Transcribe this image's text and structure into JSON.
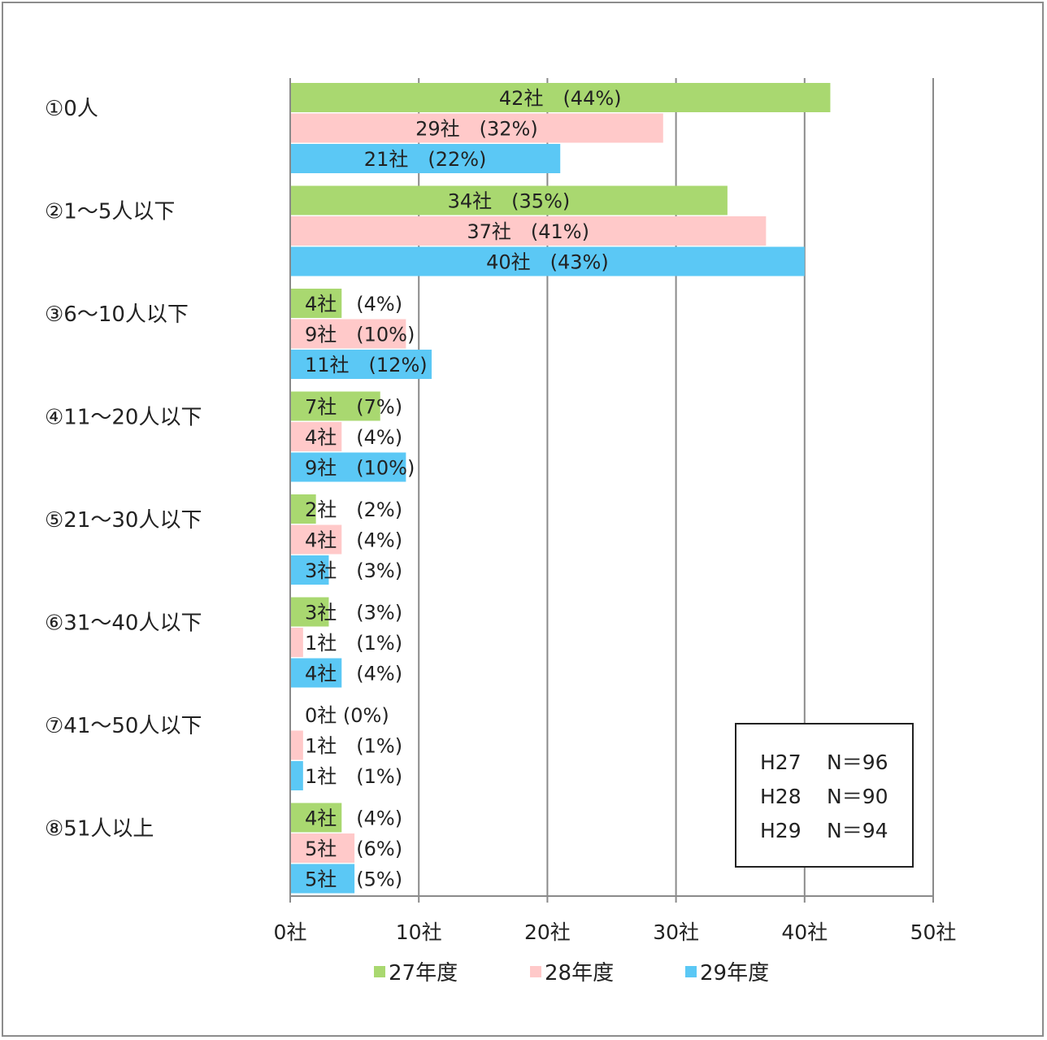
{
  "chart_data": {
    "type": "bar",
    "orientation": "horizontal",
    "categories": [
      "①0人",
      "②1～5人以下",
      "③6～10人以下",
      "④11～20人以下",
      "⑤21～30人以下",
      "⑥31～40人以下",
      "⑦41～50人以下",
      "⑧51人以上"
    ],
    "series": [
      {
        "name": "27年度",
        "color": "#a9d870",
        "values": [
          42,
          34,
          4,
          7,
          2,
          3,
          0,
          4
        ],
        "labels": [
          "42社　(44%)",
          "34社　(35%)",
          "4社　(4%)",
          "7社　(7%)",
          "2社　(2%)",
          "3社　(3%)",
          "0社 (0%)",
          "4社　(4%)"
        ]
      },
      {
        "name": "28年度",
        "color": "#ffc9c9",
        "values": [
          29,
          37,
          9,
          4,
          4,
          1,
          1,
          5
        ],
        "labels": [
          "29社　(32%)",
          "37社　(41%)",
          "9社　(10%)",
          "4社　(4%)",
          "4社　(4%)",
          "1社　(1%)",
          "1社　(1%)",
          "5社　(6%)"
        ]
      },
      {
        "name": "29年度",
        "color": "#5bc8f5",
        "values": [
          21,
          40,
          11,
          9,
          3,
          4,
          1,
          5
        ],
        "labels": [
          "21社　(22%)",
          "40社　(43%)",
          "11社　(12%)",
          "9社　(10%)",
          "3社　(3%)",
          "4社　(4%)",
          "1社　(1%)",
          "5社　(5%)"
        ]
      }
    ],
    "xlim": [
      0,
      50
    ],
    "xticks": [
      0,
      10,
      20,
      30,
      40,
      50
    ],
    "xtick_labels": [
      "0社",
      "10社",
      "20社",
      "30社",
      "40社",
      "50社"
    ],
    "grid": true,
    "legend_position": "bottom",
    "notes": [
      {
        "year": "H27",
        "n": "N＝96"
      },
      {
        "year": "H28",
        "n": "N＝90"
      },
      {
        "year": "H29",
        "n": "N＝94"
      }
    ]
  }
}
